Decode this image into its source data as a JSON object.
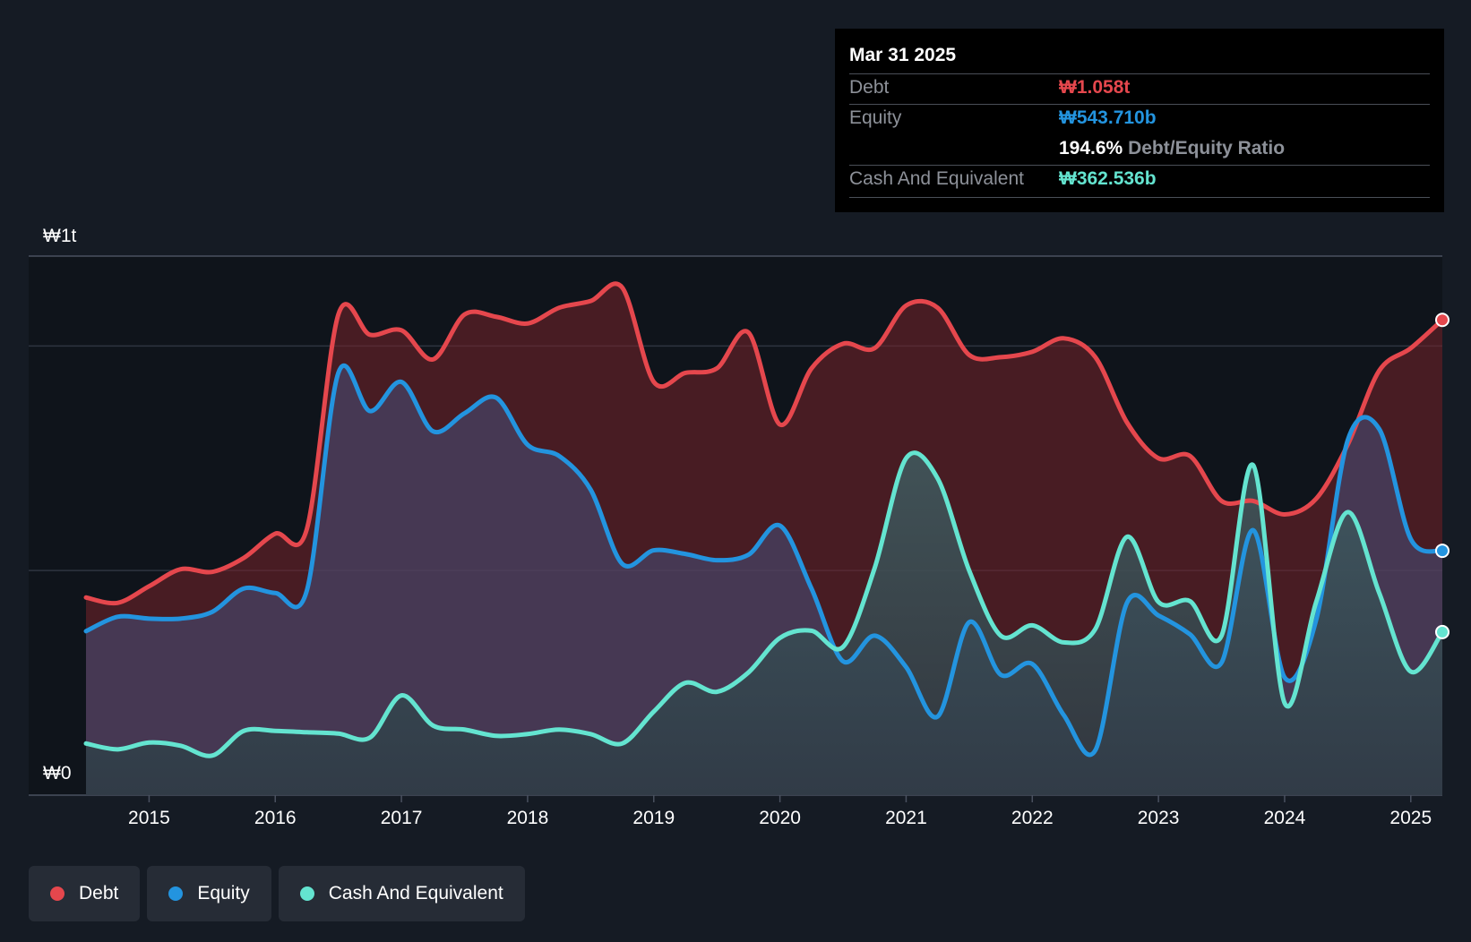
{
  "chart_data": {
    "type": "area",
    "y_axis_labels": {
      "top": "₩1t",
      "bottom": "₩0"
    },
    "ylim": [
      0,
      1200
    ],
    "xlim": [
      2014.5,
      2025.25
    ],
    "x_ticks": [
      "2015",
      "2016",
      "2017",
      "2018",
      "2019",
      "2020",
      "2021",
      "2022",
      "2023",
      "2024",
      "2025"
    ],
    "grid": true,
    "units": "₩ billions",
    "series": [
      {
        "name": "Debt",
        "color": "#e5474d",
        "points": [
          [
            2014.5,
            440
          ],
          [
            2014.75,
            428
          ],
          [
            2015.0,
            465
          ],
          [
            2015.25,
            503
          ],
          [
            2015.5,
            497
          ],
          [
            2015.75,
            528
          ],
          [
            2016.0,
            582
          ],
          [
            2016.25,
            592
          ],
          [
            2016.5,
            1070
          ],
          [
            2016.75,
            1025
          ],
          [
            2017.0,
            1035
          ],
          [
            2017.25,
            970
          ],
          [
            2017.5,
            1070
          ],
          [
            2017.75,
            1065
          ],
          [
            2018.0,
            1050
          ],
          [
            2018.25,
            1085
          ],
          [
            2018.5,
            1100
          ],
          [
            2018.75,
            1130
          ],
          [
            2019.0,
            920
          ],
          [
            2019.25,
            940
          ],
          [
            2019.5,
            950
          ],
          [
            2019.75,
            1030
          ],
          [
            2020.0,
            825
          ],
          [
            2020.25,
            950
          ],
          [
            2020.5,
            1005
          ],
          [
            2020.75,
            995
          ],
          [
            2021.0,
            1090
          ],
          [
            2021.25,
            1085
          ],
          [
            2021.5,
            980
          ],
          [
            2021.75,
            975
          ],
          [
            2022.0,
            987
          ],
          [
            2022.25,
            1017
          ],
          [
            2022.5,
            975
          ],
          [
            2022.75,
            830
          ],
          [
            2023.0,
            750
          ],
          [
            2023.25,
            755
          ],
          [
            2023.5,
            655
          ],
          [
            2023.75,
            655
          ],
          [
            2024.0,
            625
          ],
          [
            2024.25,
            660
          ],
          [
            2024.5,
            780
          ],
          [
            2024.75,
            945
          ],
          [
            2025.0,
            995
          ],
          [
            2025.25,
            1058
          ]
        ]
      },
      {
        "name": "Equity",
        "color": "#2394df",
        "points": [
          [
            2014.5,
            365
          ],
          [
            2014.75,
            397
          ],
          [
            2015.0,
            393
          ],
          [
            2015.25,
            393
          ],
          [
            2015.5,
            408
          ],
          [
            2015.75,
            460
          ],
          [
            2016.0,
            450
          ],
          [
            2016.25,
            455
          ],
          [
            2016.5,
            940
          ],
          [
            2016.75,
            855
          ],
          [
            2017.0,
            920
          ],
          [
            2017.25,
            810
          ],
          [
            2017.5,
            850
          ],
          [
            2017.75,
            885
          ],
          [
            2018.0,
            780
          ],
          [
            2018.25,
            755
          ],
          [
            2018.5,
            680
          ],
          [
            2018.75,
            515
          ],
          [
            2019.0,
            545
          ],
          [
            2019.25,
            537
          ],
          [
            2019.5,
            523
          ],
          [
            2019.75,
            535
          ],
          [
            2020.0,
            600
          ],
          [
            2020.25,
            460
          ],
          [
            2020.5,
            298
          ],
          [
            2020.75,
            355
          ],
          [
            2021.0,
            285
          ],
          [
            2021.25,
            175
          ],
          [
            2021.5,
            385
          ],
          [
            2021.75,
            268
          ],
          [
            2022.0,
            292
          ],
          [
            2022.25,
            178
          ],
          [
            2022.5,
            100
          ],
          [
            2022.75,
            428
          ],
          [
            2023.0,
            400
          ],
          [
            2023.25,
            358
          ],
          [
            2023.5,
            295
          ],
          [
            2023.75,
            590
          ],
          [
            2024.0,
            262
          ],
          [
            2024.25,
            390
          ],
          [
            2024.5,
            790
          ],
          [
            2024.75,
            815
          ],
          [
            2025.0,
            570
          ],
          [
            2025.25,
            544
          ]
        ]
      },
      {
        "name": "Cash And Equivalent",
        "color": "#64e4d0",
        "points": [
          [
            2014.5,
            115
          ],
          [
            2014.75,
            102
          ],
          [
            2015.0,
            117
          ],
          [
            2015.25,
            110
          ],
          [
            2015.5,
            88
          ],
          [
            2015.75,
            143
          ],
          [
            2016.0,
            143
          ],
          [
            2016.25,
            140
          ],
          [
            2016.5,
            137
          ],
          [
            2016.75,
            128
          ],
          [
            2017.0,
            222
          ],
          [
            2017.25,
            155
          ],
          [
            2017.5,
            146
          ],
          [
            2017.75,
            132
          ],
          [
            2018.0,
            136
          ],
          [
            2018.25,
            146
          ],
          [
            2018.5,
            136
          ],
          [
            2018.75,
            115
          ],
          [
            2019.0,
            186
          ],
          [
            2019.25,
            250
          ],
          [
            2019.5,
            230
          ],
          [
            2019.75,
            273
          ],
          [
            2020.0,
            350
          ],
          [
            2020.25,
            366
          ],
          [
            2020.5,
            330
          ],
          [
            2020.75,
            505
          ],
          [
            2021.0,
            750
          ],
          [
            2021.25,
            705
          ],
          [
            2021.5,
            500
          ],
          [
            2021.75,
            355
          ],
          [
            2022.0,
            378
          ],
          [
            2022.25,
            340
          ],
          [
            2022.5,
            370
          ],
          [
            2022.75,
            575
          ],
          [
            2023.0,
            430
          ],
          [
            2023.25,
            432
          ],
          [
            2023.5,
            355
          ],
          [
            2023.75,
            735
          ],
          [
            2024.0,
            205
          ],
          [
            2024.25,
            430
          ],
          [
            2024.5,
            630
          ],
          [
            2024.75,
            450
          ],
          [
            2025.0,
            275
          ],
          [
            2025.25,
            363
          ]
        ]
      }
    ]
  },
  "tooltip": {
    "date": "Mar 31 2025",
    "rows": [
      {
        "label": "Debt",
        "value": "₩1.058t",
        "color": "#e5474d"
      },
      {
        "label": "Equity",
        "value": "₩543.710b",
        "color": "#2394df"
      },
      {
        "label": "Cash And Equivalent",
        "value": "₩362.536b",
        "color": "#64e4d0"
      }
    ],
    "ratio_value": "194.6%",
    "ratio_label": "Debt/Equity Ratio"
  },
  "legend": {
    "items": [
      {
        "label": "Debt",
        "color": "#e5474d"
      },
      {
        "label": "Equity",
        "color": "#2394df"
      },
      {
        "label": "Cash And Equivalent",
        "color": "#64e4d0"
      }
    ]
  }
}
